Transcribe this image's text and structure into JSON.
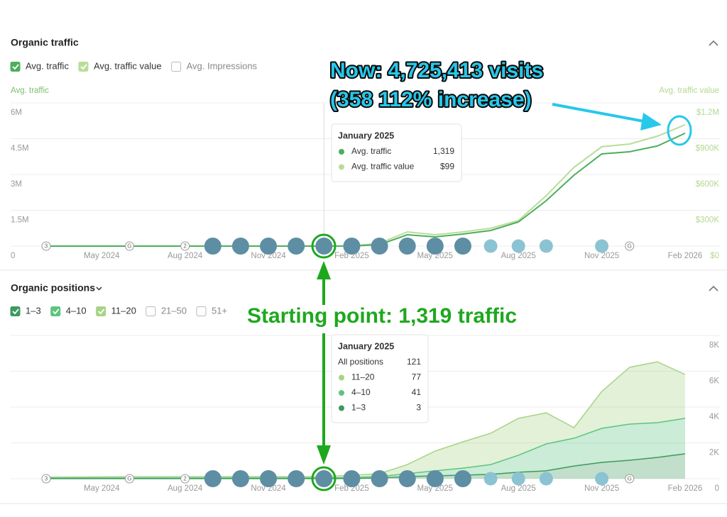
{
  "chart_data": [
    {
      "type": "line",
      "title": "Organic traffic",
      "ylabel": "Avg. traffic",
      "y2label": "Avg. traffic value",
      "unchecked_series": [
        "Avg. Impressions"
      ],
      "categories": [
        null,
        null,
        "May 2024",
        null,
        null,
        "Aug 2024",
        null,
        null,
        "Nov 2024",
        null,
        null,
        "Feb 2025",
        null,
        null,
        "May 2025",
        null,
        null,
        "Aug 2025",
        null,
        null,
        "Nov 2025",
        null,
        null,
        "Feb 2026"
      ],
      "series": [
        {
          "name": "Avg. traffic",
          "color": "#4cae5c",
          "values": [
            800,
            900,
            1000,
            1100,
            1000,
            1200,
            1100,
            1200,
            1300,
            1250,
            1319,
            3000,
            60000,
            475000,
            386000,
            505000,
            653000,
            1010000,
            1900000,
            2970000,
            3860000,
            3950000,
            4190000,
            4725413
          ]
        },
        {
          "name": "Avg. traffic value",
          "color": "#b9dd98",
          "axis": "y2",
          "values": [
            60,
            70,
            70,
            80,
            80,
            90,
            90,
            95,
            100,
            95,
            99,
            500,
            24000,
            119000,
            95000,
            119000,
            149000,
            214000,
            422000,
            660000,
            832000,
            855000,
            921000,
            1016000
          ]
        }
      ],
      "ylim": [
        0,
        6000000
      ],
      "yticks": [
        0,
        {
          "value": 1500000,
          "label": "1.5M"
        },
        {
          "value": 3000000,
          "label": "3M"
        },
        {
          "value": 4500000,
          "label": "4.5M"
        },
        {
          "value": 6000000,
          "label": "6M"
        }
      ],
      "y2lim": [
        0,
        1200000
      ],
      "y2ticks": [
        {
          "value": 0,
          "label": "$0"
        },
        {
          "value": 300000,
          "label": "$300K"
        },
        {
          "value": 600000,
          "label": "$600K"
        },
        {
          "value": 900000,
          "label": "$900K"
        },
        {
          "value": 1200000,
          "label": "$1.2M"
        }
      ],
      "grid": true,
      "event_labels": [
        "3",
        "G",
        "2",
        "G"
      ],
      "tooltip": {
        "title": "January 2025",
        "rows": [
          {
            "label": "Avg. traffic",
            "value": "1,319"
          },
          {
            "label": "Avg. traffic value",
            "value": "$99"
          }
        ]
      }
    },
    {
      "type": "stacked_area",
      "title": "Organic positions",
      "unchecked_series": [
        "21–50",
        "51+"
      ],
      "categories": [
        null,
        null,
        "May 2024",
        null,
        null,
        "Aug 2024",
        null,
        null,
        "Nov 2024",
        null,
        null,
        "Feb 2025",
        null,
        null,
        "May 2025",
        null,
        null,
        "Aug 2025",
        null,
        null,
        "Nov 2025",
        null,
        null,
        "Feb 2026"
      ],
      "series": [
        {
          "name": "1–3",
          "color": "#3d9a5d",
          "values": [
            2,
            2,
            3,
            3,
            2,
            3,
            3,
            3,
            3,
            3,
            3,
            10,
            40,
            120,
            160,
            200,
            240,
            360,
            440,
            710,
            910,
            1030,
            1190,
            1390
          ]
        },
        {
          "name": "4–10",
          "color": "#5dc47f",
          "values": [
            30,
            32,
            35,
            36,
            38,
            38,
            40,
            40,
            41,
            40,
            41,
            60,
            80,
            160,
            280,
            390,
            550,
            950,
            1500,
            1550,
            1900,
            2020,
            1940,
            1980
          ]
        },
        {
          "name": "11–20",
          "color": "#a6d486",
          "values": [
            60,
            62,
            65,
            66,
            70,
            72,
            74,
            75,
            76,
            77,
            77,
            120,
            160,
            510,
            1100,
            1470,
            1750,
            2060,
            1740,
            590,
            2060,
            3170,
            3400,
            2450
          ]
        }
      ],
      "ylim": [
        0,
        8000
      ],
      "yticks": [
        0,
        {
          "value": 2000,
          "label": "2K"
        },
        {
          "value": 4000,
          "label": "4K"
        },
        {
          "value": 6000,
          "label": "6K"
        },
        {
          "value": 8000,
          "label": "8K"
        }
      ],
      "grid": true,
      "event_labels": [
        "3",
        "G",
        "2",
        "G"
      ],
      "tooltip": {
        "title": "January 2025",
        "total_label": "All positions",
        "total": "121",
        "rows": [
          {
            "label": "11–20",
            "value": "77"
          },
          {
            "label": "4–10",
            "value": "41"
          },
          {
            "label": "1–3",
            "value": "3"
          }
        ]
      }
    }
  ],
  "annotations": {
    "now": "Now: 4,725,413 visits",
    "increase": "(358 112% increase)",
    "start": "Starting point: 1,319 traffic"
  }
}
